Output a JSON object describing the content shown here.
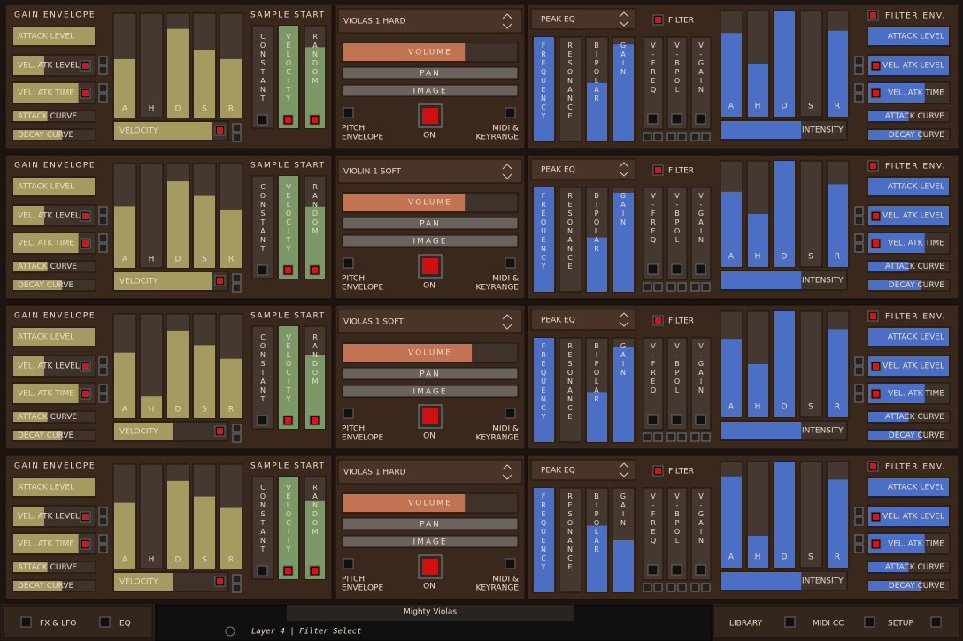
{
  "layer_labels": {
    "gain_envelope": "GAIN ENVELOPE",
    "attack_level": "ATTACK LEVEL",
    "vel_atk_level": "VEL. ATK LEVEL",
    "vel_atk_time": "VEL. ATK TIME",
    "attack_curve": "ATTACK CURVE",
    "decay_curve": "DECAY CURVE",
    "stages": [
      "A",
      "H",
      "D",
      "S",
      "R"
    ],
    "velocity": "VELOCITY",
    "sample_start": "SAMPLE START",
    "sample_modes": [
      "CONSTANT",
      "VELOCITY",
      "RANDOM"
    ],
    "volume": "VOLUME",
    "pan": "PAN",
    "image": "IMAGE",
    "pitch_envelope": [
      "PITCH",
      "ENVELOPE"
    ],
    "on": "ON",
    "midi_keyrange": [
      "MIDI &",
      "KEYRANGE"
    ],
    "peak_eq": "PEAK EQ",
    "filter": "FILTER",
    "eq_params": [
      "FREQUENCY",
      "RESONANCE",
      "BIPOLAR",
      "GAIN"
    ],
    "velocity_params": [
      "V-FREQ",
      "V-BPOL",
      "V-GAIN"
    ],
    "intensity": "INTENSITY",
    "filter_env": "FILTER ENV."
  },
  "layers": [
    {
      "preset": "VIOLAS 1 HARD",
      "gain_envelope": [
        56,
        0,
        85,
        65,
        56
      ],
      "gain_mods": [
        100,
        38,
        80,
        42,
        60
      ],
      "velocity": 86,
      "sample_start": [
        0,
        100,
        79
      ],
      "volume": 70,
      "eq": [
        100,
        0,
        56,
        93
      ],
      "eq_velocity": [
        0,
        0,
        0
      ],
      "filter_envelope": [
        79,
        50,
        100,
        0,
        81
      ],
      "intensity": 64,
      "filter_mods": [
        100,
        100,
        70,
        50,
        65
      ]
    },
    {
      "preset": "VIOLIN 1 SOFT",
      "gain_envelope": [
        59,
        0,
        83,
        69,
        56
      ],
      "gain_mods": [
        100,
        38,
        80,
        42,
        60
      ],
      "velocity": 86,
      "sample_start": [
        0,
        100,
        70
      ],
      "volume": 70,
      "eq": [
        100,
        0,
        52,
        95
      ],
      "eq_velocity": [
        0,
        0,
        0
      ],
      "filter_envelope": [
        71,
        50,
        100,
        0,
        78
      ],
      "intensity": 64,
      "filter_mods": [
        100,
        100,
        70,
        50,
        65
      ]
    },
    {
      "preset": "VIOLAS 1 SOFT",
      "gain_envelope": [
        63,
        21,
        84,
        70,
        57
      ],
      "gain_mods": [
        100,
        38,
        80,
        42,
        60
      ],
      "velocity": 52,
      "sample_start": [
        0,
        100,
        72
      ],
      "volume": 74,
      "eq": [
        100,
        0,
        48,
        91
      ],
      "eq_velocity": [
        0,
        0,
        0
      ],
      "filter_envelope": [
        74,
        50,
        100,
        0,
        83
      ],
      "intensity": 64,
      "filter_mods": [
        100,
        100,
        70,
        50,
        65
      ]
    },
    {
      "preset": "VIOLAS 1 HARD",
      "gain_envelope": [
        63,
        0,
        84,
        69,
        58
      ],
      "gain_mods": [
        100,
        38,
        80,
        42,
        60
      ],
      "velocity": 52,
      "sample_start": [
        0,
        100,
        76
      ],
      "volume": 70,
      "eq": [
        100,
        0,
        64,
        50
      ],
      "eq_velocity": [
        0,
        0,
        0
      ],
      "filter_envelope": [
        86,
        30,
        100,
        0,
        83
      ],
      "intensity": 64,
      "filter_mods": [
        100,
        100,
        70,
        50,
        65
      ]
    }
  ],
  "footer": {
    "fx_lfo": "FX & LFO",
    "eq": "EQ",
    "instrument": "Mighty Violas",
    "status": "Layer 4 | Filter Select",
    "library": "LIBRARY",
    "midi_cc": "MIDI CC",
    "setup": "SETUP"
  }
}
